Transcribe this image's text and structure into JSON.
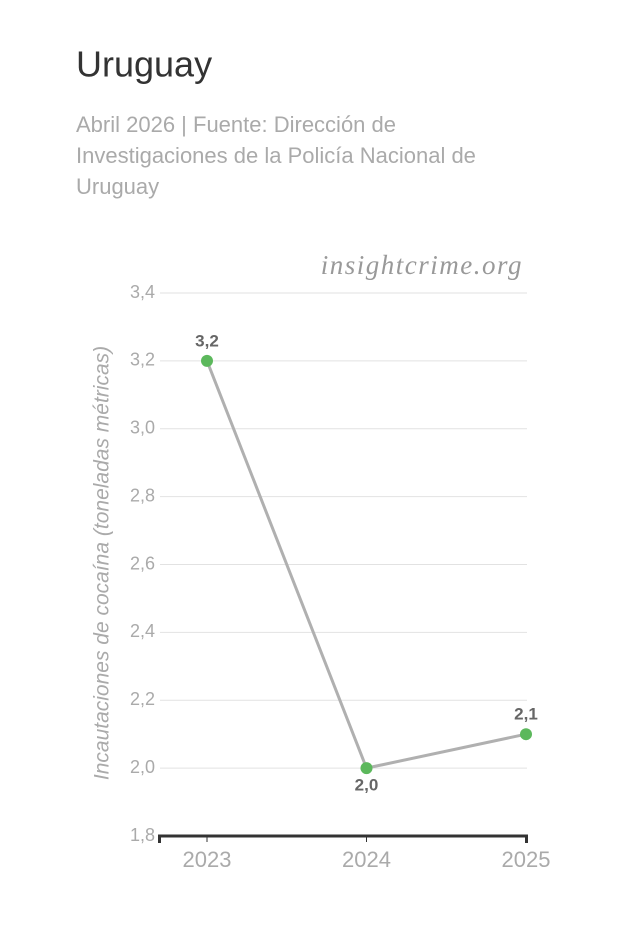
{
  "chart_data": {
    "type": "line",
    "title": "Uruguay",
    "subtitle": [
      "Abril 2026 | Fuente: Dirección de",
      "Investigaciones de la Policía Nacional de",
      "Uruguay"
    ],
    "watermark": "insightcrime.org",
    "y_label": "Incautaciones de cocaína (toneladas métricas)",
    "categories": [
      "2023",
      "2024",
      "2025"
    ],
    "values": [
      3.2,
      2.0,
      2.1
    ],
    "value_labels": [
      "3,2",
      "2,0",
      "2,1"
    ],
    "line_color": "#b0b0b0",
    "color": "#5cb85c",
    "ylim": [
      1.8,
      3.4
    ],
    "yticks": [
      {
        "value": 1.8,
        "label": "1,8"
      },
      {
        "value": 2.0,
        "label": "2,0"
      },
      {
        "value": 2.2,
        "label": "2,2"
      },
      {
        "value": 2.4,
        "label": "2,4"
      },
      {
        "value": 2.6,
        "label": "2,6"
      },
      {
        "value": 2.8,
        "label": "2,8"
      },
      {
        "value": 3.0,
        "label": "3,0"
      },
      {
        "value": 3.2,
        "label": "3,2"
      },
      {
        "value": 3.4,
        "label": "3,4"
      }
    ],
    "grid": true
  }
}
